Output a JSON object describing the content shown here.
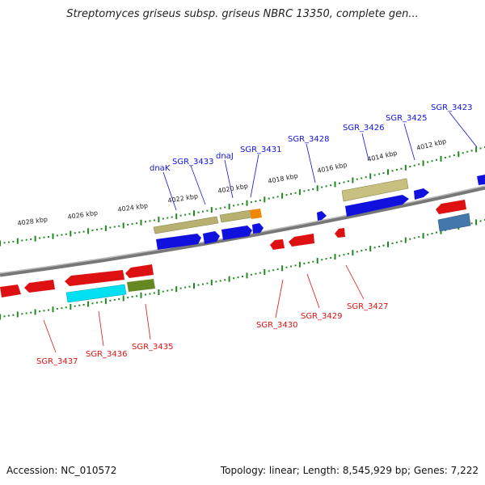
{
  "title": "Streptomyces griseus subsp. griseus NBRC 13350, complete gen...",
  "footer": {
    "accession": "Accession: NC_010572",
    "topology": "Topology: linear; Length: 8,545,929 bp; Genes: 7,222"
  },
  "scale_labels": [
    "4028 kbp",
    "4026 kbp",
    "4024 kbp",
    "4022 kbp",
    "4020 kbp",
    "4018 kbp",
    "4016 kbp",
    "4014 kbp",
    "4012 kbp"
  ],
  "genes_top": [
    "dnaK",
    "SGR_3433",
    "dnaJ",
    "SGR_3431",
    "SGR_3428",
    "SGR_3426",
    "SGR_3425",
    "SGR_3423"
  ],
  "genes_bottom": [
    "SGR_3437",
    "SGR_3436",
    "SGR_3435",
    "SGR_3430",
    "SGR_3429",
    "SGR_3427"
  ],
  "colors": {
    "forward_strand": "#0000dd",
    "reverse_strand": "#dd0000",
    "tick": "#228822",
    "backbone": "#888888",
    "olive": "#b8b070",
    "orange": "#ee8800",
    "cyan": "#00e0f0",
    "green": "#668822",
    "steel": "#4477aa"
  }
}
